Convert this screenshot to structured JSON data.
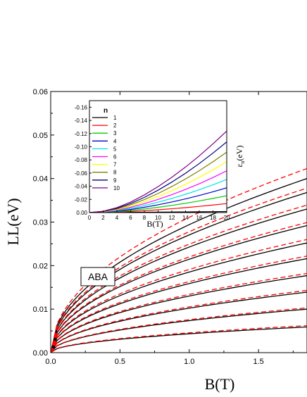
{
  "chart_data": [
    {
      "type": "line",
      "xlabel": "B(T)",
      "ylabel": "LL(eV)",
      "xlim": [
        0,
        1.85
      ],
      "ylim": [
        0,
        0.06
      ],
      "xticks": [
        0.0,
        0.5,
        1.0,
        1.5
      ],
      "xtick_labels": [
        "0.0",
        "0.5",
        "1.0",
        "1.5"
      ],
      "yticks": [
        0.0,
        0.01,
        0.02,
        0.03,
        0.04,
        0.05,
        0.06
      ],
      "ytick_labels": [
        "0.00",
        "0.01",
        "0.02",
        "0.03",
        "0.04",
        "0.05",
        "0.06"
      ],
      "annotation": "ABA",
      "series_styles": [
        {
          "color": "#000000",
          "dash": "solid"
        },
        {
          "color": "#ff0000",
          "dash": "dashed"
        }
      ],
      "series": [
        {
          "values_at_xmax": [
            0.0059,
            0.01,
            0.0139,
            0.0177,
            0.0216,
            0.0252,
            0.0292,
            0.033,
            0.0368,
            0.04
          ]
        },
        {
          "values_at_xmax": [
            0.0062,
            0.0103,
            0.0143,
            0.0182,
            0.0222,
            0.026,
            0.0299,
            0.0339,
            0.0378,
            0.0423
          ]
        }
      ]
    },
    {
      "type": "line",
      "xlabel": "B(T)",
      "ylabel": "ε_n(eV)",
      "xlim": [
        0,
        20
      ],
      "ylim": [
        0,
        -0.17
      ],
      "xticks": [
        0,
        2,
        4,
        6,
        8,
        10,
        12,
        14,
        16,
        18,
        20
      ],
      "xtick_labels": [
        "0",
        "2",
        "4",
        "6",
        "8",
        "10",
        "12",
        "14",
        "16",
        "18",
        "20"
      ],
      "yticks": [
        0,
        -0.02,
        -0.04,
        -0.06,
        -0.08,
        -0.1,
        -0.12,
        -0.14,
        -0.16
      ],
      "ytick_labels": [
        "0.00",
        "-0.02",
        "-0.04",
        "-0.06",
        "-0.08",
        "-0.10",
        "-0.12",
        "-0.14",
        "-0.16"
      ],
      "legend_title": "n",
      "legend_position": "top-left",
      "x": [
        0,
        2,
        4,
        6,
        8,
        10,
        12,
        14,
        16,
        18,
        20
      ],
      "series": [
        {
          "name": "1",
          "color": "#000000",
          "values": [
            0,
            -0.0001,
            -0.0002,
            -0.0004,
            -0.0005,
            -0.0007,
            -0.0008,
            -0.001,
            -0.0012,
            -0.0014,
            -0.0016
          ]
        },
        {
          "name": "2",
          "color": "#ff0000",
          "values": [
            0,
            -0.0002,
            -0.0008,
            -0.0017,
            -0.0029,
            -0.0043,
            -0.0058,
            -0.0075,
            -0.0094,
            -0.0115,
            -0.0137
          ]
        },
        {
          "name": "3",
          "color": "#00cc00",
          "values": [
            0,
            -0.0004,
            -0.0015,
            -0.0032,
            -0.0054,
            -0.008,
            -0.0109,
            -0.0141,
            -0.0177,
            -0.0215,
            -0.0256
          ]
        },
        {
          "name": "4",
          "color": "#0000cc",
          "values": [
            0,
            -0.0006,
            -0.0022,
            -0.0047,
            -0.008,
            -0.0118,
            -0.0161,
            -0.0208,
            -0.026,
            -0.0316,
            -0.0376
          ]
        },
        {
          "name": "5",
          "color": "#00e5e5",
          "values": [
            0,
            -0.0008,
            -0.003,
            -0.0064,
            -0.0107,
            -0.0158,
            -0.0215,
            -0.0278,
            -0.0347,
            -0.0422,
            -0.0503
          ]
        },
        {
          "name": "6",
          "color": "#ff00ff",
          "values": [
            0,
            -0.001,
            -0.0038,
            -0.0081,
            -0.0136,
            -0.02,
            -0.0272,
            -0.0352,
            -0.0438,
            -0.0533,
            -0.0635
          ]
        },
        {
          "name": "7",
          "color": "#ffff00",
          "values": [
            0,
            -0.0012,
            -0.0046,
            -0.0099,
            -0.0166,
            -0.0244,
            -0.0332,
            -0.0429,
            -0.0535,
            -0.065,
            -0.0774
          ]
        },
        {
          "name": "8",
          "color": "#808000",
          "values": [
            0,
            -0.0015,
            -0.0055,
            -0.0118,
            -0.0197,
            -0.029,
            -0.0395,
            -0.0511,
            -0.0636,
            -0.0772,
            -0.0918
          ]
        },
        {
          "name": "9",
          "color": "#000080",
          "values": [
            0,
            -0.0018,
            -0.0065,
            -0.0138,
            -0.0231,
            -0.034,
            -0.0463,
            -0.0598,
            -0.0745,
            -0.0904,
            -0.1073
          ]
        },
        {
          "name": "10",
          "color": "#800080",
          "values": [
            0,
            -0.0021,
            -0.0075,
            -0.016,
            -0.0268,
            -0.0394,
            -0.0536,
            -0.0692,
            -0.0861,
            -0.1044,
            -0.1238
          ]
        }
      ]
    }
  ]
}
